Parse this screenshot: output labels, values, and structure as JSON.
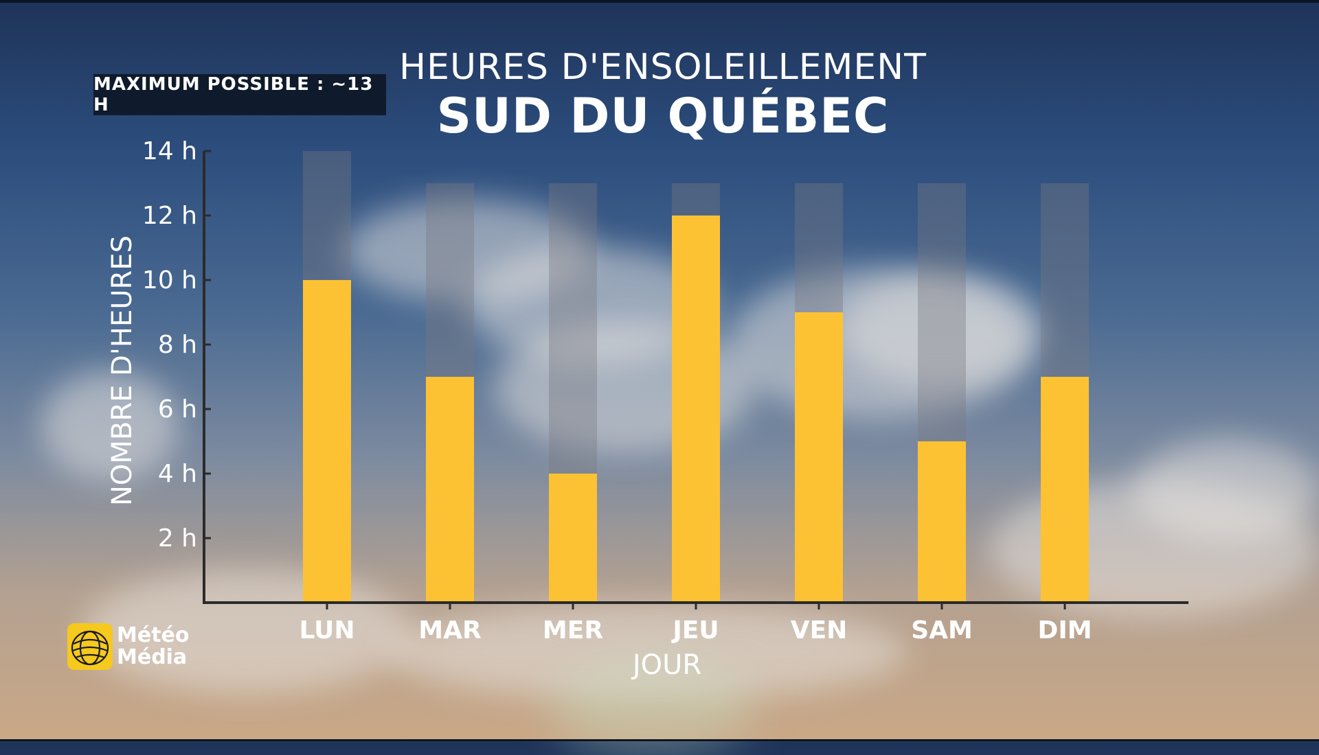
{
  "header": {
    "title_line1": "HEURES D'ENSOLEILLEMENT",
    "title_line2": "SUD DU QUÉBEC"
  },
  "badge": {
    "text": "MAXIMUM POSSIBLE : ~13 H"
  },
  "logo": {
    "line1": "Météo",
    "line2": "Média",
    "icon": "globe-icon"
  },
  "colors": {
    "bar": "#fcc233",
    "max_band": "rgba(120,120,130,0.38)",
    "axis": "#2b2b2b"
  },
  "chart_data": {
    "type": "bar",
    "title": "HEURES D'ENSOLEILLEMENT",
    "subtitle": "SUD DU QUÉBEC",
    "xlabel": "JOUR",
    "ylabel": "NOMBRE D'HEURES",
    "categories": [
      "LUN",
      "MAR",
      "MER",
      "JEU",
      "VEN",
      "SAM",
      "DIM"
    ],
    "series": [
      {
        "values": [
          10,
          7,
          4,
          12,
          9,
          5,
          7
        ]
      }
    ],
    "max_possible": [
      14,
      13,
      13,
      13,
      13,
      13,
      13
    ],
    "ylim": [
      0,
      14
    ],
    "yticks": [
      2,
      4,
      6,
      8,
      10,
      12,
      14
    ],
    "ytick_labels": [
      "2 h",
      "4 h",
      "6 h",
      "8 h",
      "10 h",
      "12 h",
      "14 h"
    ],
    "grid": false,
    "legend": "none"
  }
}
